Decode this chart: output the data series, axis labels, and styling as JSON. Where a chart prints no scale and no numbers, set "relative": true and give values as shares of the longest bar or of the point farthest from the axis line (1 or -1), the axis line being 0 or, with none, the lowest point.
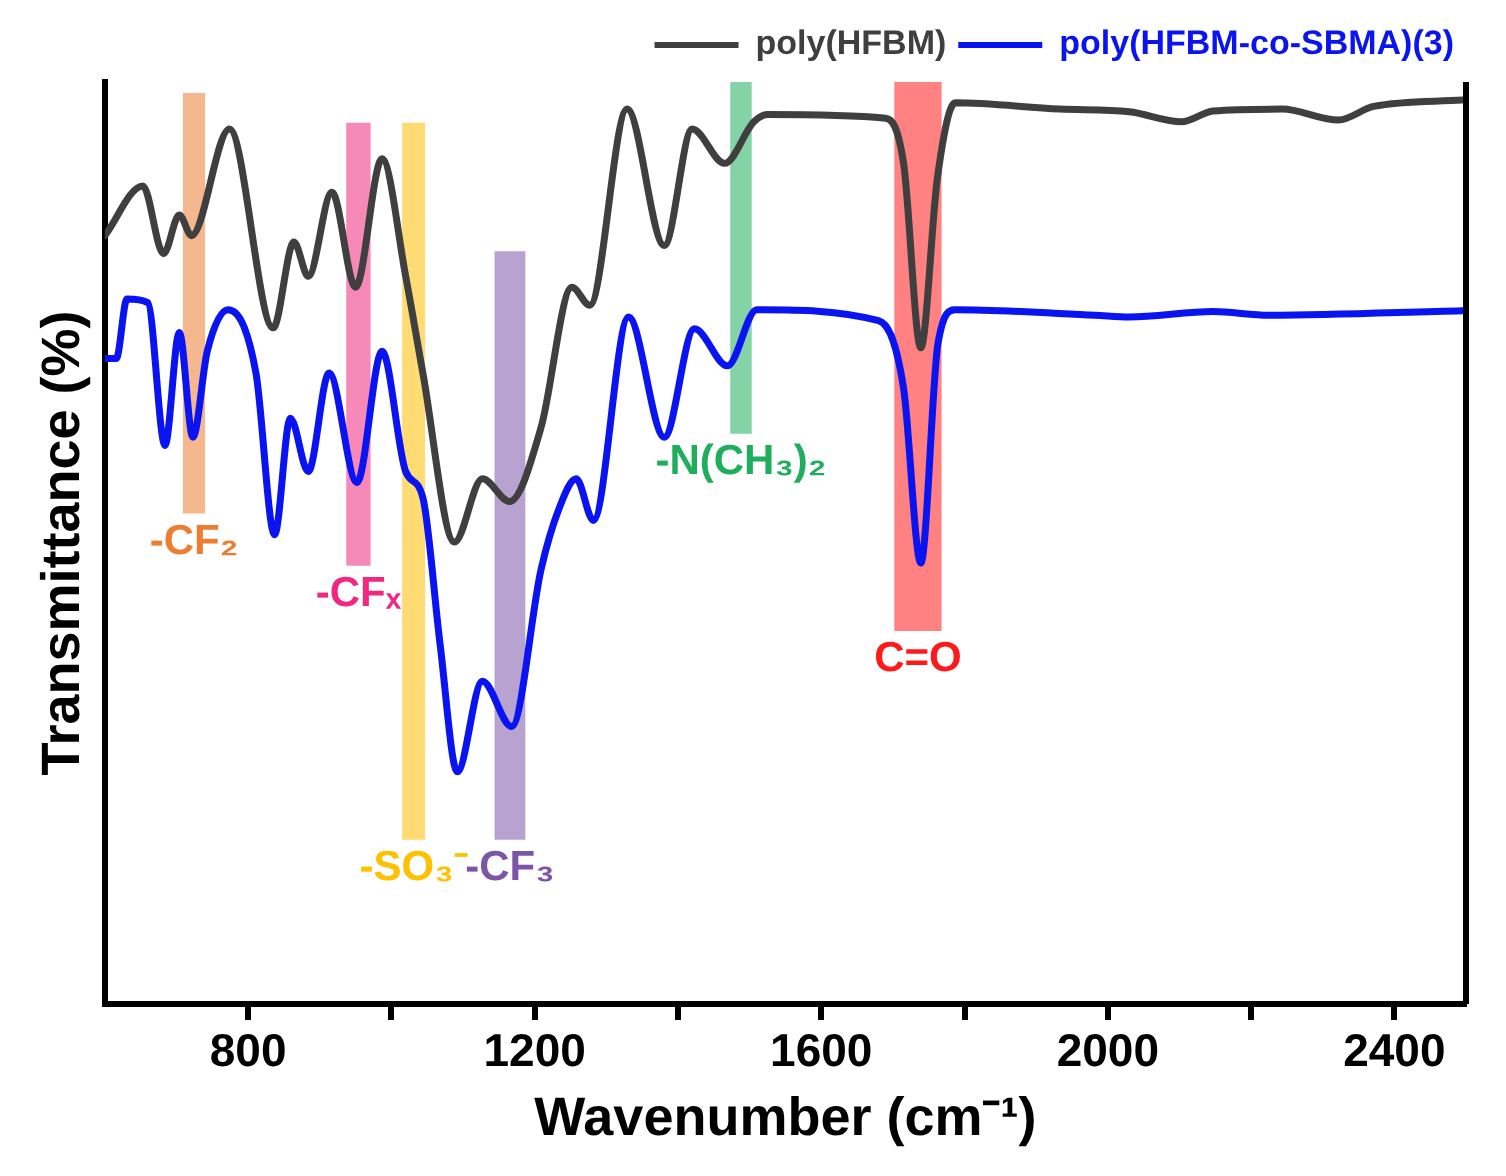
{
  "chart_data": {
    "type": "line",
    "relative": true,
    "xlabel": "Wavenumber (cm⁻¹)",
    "ylabel": "Transmittance (%)",
    "xlim": [
      600,
      2500
    ],
    "xticks": [
      800,
      {
        "value": 1000,
        "label": null
      },
      1200,
      {
        "value": 1400,
        "label": null
      },
      1600,
      {
        "value": 1800,
        "label": null
      },
      2000,
      {
        "value": 2200,
        "label": null
      },
      2400
    ],
    "grid": false,
    "legend": "top right",
    "marker": "none",
    "line_style": "solid",
    "series": [
      {
        "name": "poly(HFBM)",
        "color": "#3f3f3f",
        "x": [
          600,
          653,
          682,
          704,
          721,
          774,
          835,
          864,
          884,
          917,
          950,
          987,
          1020,
          1044,
          1088,
          1127,
          1165,
          1209,
          1252,
          1277,
          1329,
          1381,
          1420,
          1465,
          1506,
          1525,
          1690,
          1715,
          1739,
          1762,
          1787,
          1933,
          2030,
          2103,
          2147,
          2243,
          2322,
          2371,
          2495
        ],
        "values": [
          0.85,
          0.905,
          0.83,
          0.873,
          0.85,
          0.968,
          0.748,
          0.843,
          0.805,
          0.898,
          0.793,
          0.935,
          0.805,
          0.698,
          0.511,
          0.581,
          0.556,
          0.638,
          0.793,
          0.773,
          0.99,
          0.839,
          0.968,
          0.93,
          0.976,
          0.984,
          0.98,
          0.93,
          0.726,
          0.913,
          0.997,
          0.99,
          0.987,
          0.976,
          0.988,
          0.99,
          0.978,
          0.993,
          1
        ]
      },
      {
        "name": "poly(HFBM-co-SBMA)(3)",
        "color": "#0a14f0",
        "x": [
          600,
          616,
          631,
          660,
          684,
          704,
          723,
          743,
          772,
          811,
          837,
          859,
          884,
          913,
          952,
          987,
          1020,
          1044,
          1068,
          1092,
          1127,
          1168,
          1209,
          1234,
          1258,
          1282,
          1331,
          1381,
          1423,
          1469,
          1510,
          1680,
          1715,
          1739,
          1763,
          1787,
          1982,
          2030,
          2147,
          2225,
          2495
        ],
        "values": [
          0.714,
          0.714,
          0.78,
          0.776,
          0.618,
          0.743,
          0.627,
          0.722,
          0.768,
          0.698,
          0.519,
          0.648,
          0.589,
          0.698,
          0.577,
          0.722,
          0.589,
          0.56,
          0.398,
          0.257,
          0.357,
          0.307,
          0.481,
          0.548,
          0.581,
          0.535,
          0.76,
          0.627,
          0.747,
          0.706,
          0.768,
          0.756,
          0.681,
          0.488,
          0.731,
          0.768,
          0.762,
          0.76,
          0.766,
          0.762,
          0.767
        ]
      }
    ],
    "bands": [
      {
        "axis": "x",
        "from": 709,
        "to": 740,
        "label": "-CF₂",
        "color": "#ed7d31"
      },
      {
        "axis": "x",
        "from": 937,
        "to": 971,
        "label": "-CFₓ",
        "color": "#f0287f"
      },
      {
        "axis": "x",
        "from": 1015,
        "to": 1047,
        "label": "-SO₃⁻",
        "color": "#ffc000"
      },
      {
        "axis": "x",
        "from": 1144,
        "to": 1187,
        "label": "-CF₃",
        "color": "#7d55a8"
      },
      {
        "axis": "x",
        "from": 1473,
        "to": 1503,
        "label": "-N(CH₃)₂",
        "color": "#1fae5c"
      },
      {
        "axis": "x",
        "from": 1702,
        "to": 1768,
        "label": "C=O",
        "color": "#ff1a1a"
      }
    ]
  }
}
